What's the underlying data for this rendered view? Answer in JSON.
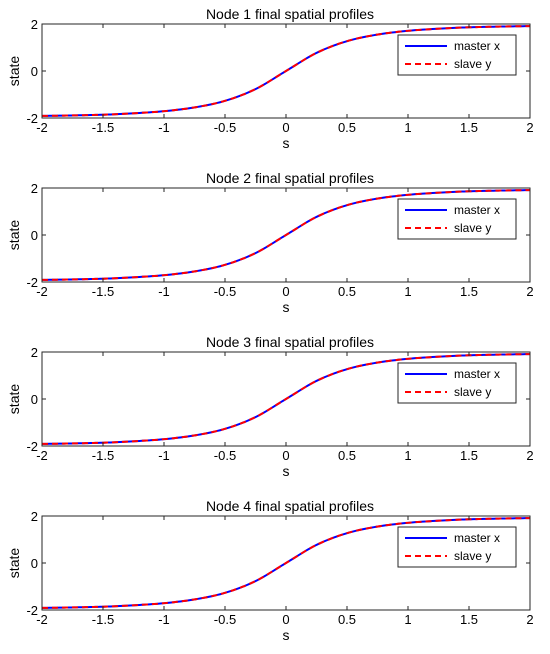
{
  "chart_data": [
    {
      "type": "line",
      "title": "Node 1 final spatial profiles",
      "xlabel": "s",
      "ylabel": "state",
      "xlim": [
        -2,
        2
      ],
      "ylim": [
        -2,
        2
      ],
      "xticks": [
        -2,
        -1.5,
        -1,
        -0.5,
        0,
        0.5,
        1,
        1.5,
        2
      ],
      "xtick_labels": [
        "-2",
        "-1.5",
        "-1",
        "-0.5",
        "0",
        "0.5",
        "1",
        "1.5",
        "2"
      ],
      "yticks": [
        -2,
        0,
        2
      ],
      "ytick_labels": [
        "-2",
        "0",
        "2"
      ],
      "legend_position": "top-right",
      "grid": false,
      "x": [
        -2,
        -1.75,
        -1.5,
        -1.25,
        -1,
        -0.75,
        -0.5,
        -0.25,
        0,
        0.25,
        0.5,
        0.75,
        1,
        1.25,
        1.5,
        1.75,
        2
      ],
      "series": [
        {
          "name": "master x",
          "color": "#0000ff",
          "style": "solid",
          "values": [
            -1.91,
            -1.89,
            -1.86,
            -1.8,
            -1.71,
            -1.55,
            -1.27,
            -0.77,
            0,
            0.77,
            1.27,
            1.55,
            1.71,
            1.8,
            1.86,
            1.89,
            1.91
          ]
        },
        {
          "name": "slave y",
          "color": "#ff0000",
          "style": "dashed",
          "values": [
            -1.91,
            -1.89,
            -1.86,
            -1.8,
            -1.71,
            -1.55,
            -1.27,
            -0.77,
            0,
            0.77,
            1.27,
            1.55,
            1.71,
            1.8,
            1.86,
            1.89,
            1.91
          ]
        }
      ]
    },
    {
      "type": "line",
      "title": "Node 2 final spatial profiles",
      "xlabel": "s",
      "ylabel": "state",
      "xlim": [
        -2,
        2
      ],
      "ylim": [
        -2,
        2
      ],
      "xticks": [
        -2,
        -1.5,
        -1,
        -0.5,
        0,
        0.5,
        1,
        1.5,
        2
      ],
      "xtick_labels": [
        "-2",
        "-1.5",
        "-1",
        "-0.5",
        "0",
        "0.5",
        "1",
        "1.5",
        "2"
      ],
      "yticks": [
        -2,
        0,
        2
      ],
      "ytick_labels": [
        "-2",
        "0",
        "2"
      ],
      "legend_position": "top-right",
      "grid": false,
      "x": [
        -2,
        -1.75,
        -1.5,
        -1.25,
        -1,
        -0.75,
        -0.5,
        -0.25,
        0,
        0.25,
        0.5,
        0.75,
        1,
        1.25,
        1.5,
        1.75,
        2
      ],
      "series": [
        {
          "name": "master x",
          "color": "#0000ff",
          "style": "solid",
          "values": [
            -1.91,
            -1.89,
            -1.86,
            -1.8,
            -1.71,
            -1.55,
            -1.27,
            -0.77,
            0,
            0.77,
            1.27,
            1.55,
            1.71,
            1.8,
            1.86,
            1.89,
            1.91
          ]
        },
        {
          "name": "slave y",
          "color": "#ff0000",
          "style": "dashed",
          "values": [
            -1.91,
            -1.89,
            -1.86,
            -1.8,
            -1.71,
            -1.55,
            -1.27,
            -0.77,
            0,
            0.77,
            1.27,
            1.55,
            1.71,
            1.8,
            1.86,
            1.89,
            1.91
          ]
        }
      ]
    },
    {
      "type": "line",
      "title": "Node 3 final spatial profiles",
      "xlabel": "s",
      "ylabel": "state",
      "xlim": [
        -2,
        2
      ],
      "ylim": [
        -2,
        2
      ],
      "xticks": [
        -2,
        -1.5,
        -1,
        -0.5,
        0,
        0.5,
        1,
        1.5,
        2
      ],
      "xtick_labels": [
        "-2",
        "-1.5",
        "-1",
        "-0.5",
        "0",
        "0.5",
        "1",
        "1.5",
        "2"
      ],
      "yticks": [
        -2,
        0,
        2
      ],
      "ytick_labels": [
        "-2",
        "0",
        "2"
      ],
      "legend_position": "top-right",
      "grid": false,
      "x": [
        -2,
        -1.75,
        -1.5,
        -1.25,
        -1,
        -0.75,
        -0.5,
        -0.25,
        0,
        0.25,
        0.5,
        0.75,
        1,
        1.25,
        1.5,
        1.75,
        2
      ],
      "series": [
        {
          "name": "master x",
          "color": "#0000ff",
          "style": "solid",
          "values": [
            -1.91,
            -1.89,
            -1.86,
            -1.8,
            -1.71,
            -1.55,
            -1.27,
            -0.77,
            0,
            0.77,
            1.27,
            1.55,
            1.71,
            1.8,
            1.86,
            1.89,
            1.91
          ]
        },
        {
          "name": "slave y",
          "color": "#ff0000",
          "style": "dashed",
          "values": [
            -1.91,
            -1.89,
            -1.86,
            -1.8,
            -1.71,
            -1.55,
            -1.27,
            -0.77,
            0,
            0.77,
            1.27,
            1.55,
            1.71,
            1.8,
            1.86,
            1.89,
            1.91
          ]
        }
      ]
    },
    {
      "type": "line",
      "title": "Node 4 final spatial profiles",
      "xlabel": "s",
      "ylabel": "state",
      "xlim": [
        -2,
        2
      ],
      "ylim": [
        -2,
        2
      ],
      "xticks": [
        -2,
        -1.5,
        -1,
        -0.5,
        0,
        0.5,
        1,
        1.5,
        2
      ],
      "xtick_labels": [
        "-2",
        "-1.5",
        "-1",
        "-0.5",
        "0",
        "0.5",
        "1",
        "1.5",
        "2"
      ],
      "yticks": [
        -2,
        0,
        2
      ],
      "ytick_labels": [
        "-2",
        "0",
        "2"
      ],
      "legend_position": "top-right",
      "grid": false,
      "x": [
        -2,
        -1.75,
        -1.5,
        -1.25,
        -1,
        -0.75,
        -0.5,
        -0.25,
        0,
        0.25,
        0.5,
        0.75,
        1,
        1.25,
        1.5,
        1.75,
        2
      ],
      "series": [
        {
          "name": "master x",
          "color": "#0000ff",
          "style": "solid",
          "values": [
            -1.91,
            -1.89,
            -1.86,
            -1.8,
            -1.71,
            -1.55,
            -1.27,
            -0.77,
            0,
            0.77,
            1.27,
            1.55,
            1.71,
            1.8,
            1.86,
            1.89,
            1.91
          ]
        },
        {
          "name": "slave y",
          "color": "#ff0000",
          "style": "dashed",
          "values": [
            -1.91,
            -1.89,
            -1.86,
            -1.8,
            -1.71,
            -1.55,
            -1.27,
            -0.77,
            0,
            0.77,
            1.27,
            1.55,
            1.71,
            1.8,
            1.86,
            1.89,
            1.91
          ]
        }
      ]
    }
  ]
}
